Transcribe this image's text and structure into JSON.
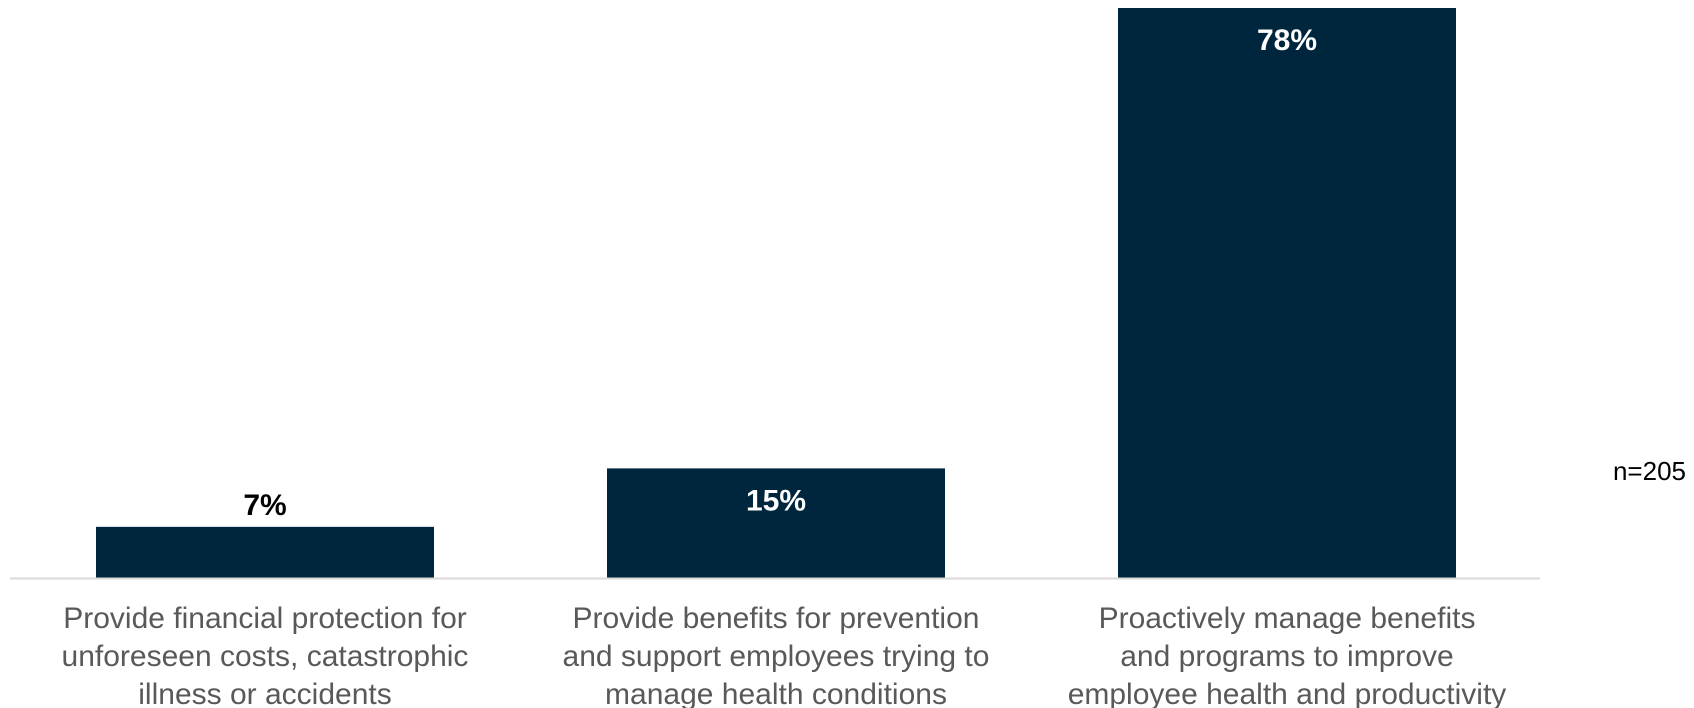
{
  "chart_data": {
    "type": "bar",
    "categories": [
      "Provide financial protection for unforeseen costs, catastrophic illness or accidents",
      "Provide benefits for prevention and support employees trying to manage health conditions",
      "Proactively manage benefits and programs to improve employee health and productivity"
    ],
    "category_lines": [
      [
        "Provide financial protection for",
        "unforeseen costs, catastrophic",
        "illness or accidents"
      ],
      [
        "Provide benefits for prevention",
        "and support employees trying to",
        "manage health conditions"
      ],
      [
        "Proactively manage benefits",
        "and programs to improve",
        "employee health and productivity"
      ]
    ],
    "values": [
      7,
      15,
      78
    ],
    "data_labels": [
      "7%",
      "15%",
      "78%"
    ],
    "ylim": [
      0,
      78
    ],
    "grid": false,
    "colors": {
      "bar": "#00263e",
      "axis": "#d9d9d9",
      "label_inside": "#ffffff",
      "label_outside": "#000000",
      "category_text": "#595959"
    }
  },
  "note": "n=205"
}
